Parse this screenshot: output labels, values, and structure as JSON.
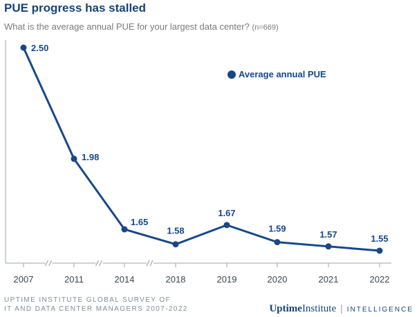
{
  "header": {
    "title": "PUE progress has stalled",
    "subtitle": "What is the average annual PUE for your largest data center?",
    "sample": "(n=669)"
  },
  "footer": {
    "source_line1": "UPTIME INSTITUTE GLOBAL SURVEY OF",
    "source_line2": "IT AND DATA CENTER MANAGERS 2007-2022",
    "brand_uptime": "Uptime",
    "brand_institute": "Institute",
    "brand_separator": "|",
    "brand_intelligence": "INTELLIGENCE"
  },
  "chart_data": {
    "type": "line",
    "categories": [
      "2007",
      "2011",
      "2014",
      "2018",
      "2019",
      "2020",
      "2021",
      "2022"
    ],
    "series": [
      {
        "name": "Average annual PUE",
        "values": [
          2.5,
          1.98,
          1.65,
          1.58,
          1.67,
          1.59,
          1.57,
          1.55
        ]
      }
    ],
    "data_labels": [
      "2.50",
      "1.98",
      "1.65",
      "1.58",
      "1.67",
      "1.59",
      "1.57",
      "1.55"
    ],
    "axis_breaks_after": [
      "2007",
      "2011",
      "2014"
    ],
    "ylim": [
      1.45,
      2.52
    ],
    "legend_position": "top-right",
    "grid": false,
    "color": "#16478c"
  }
}
